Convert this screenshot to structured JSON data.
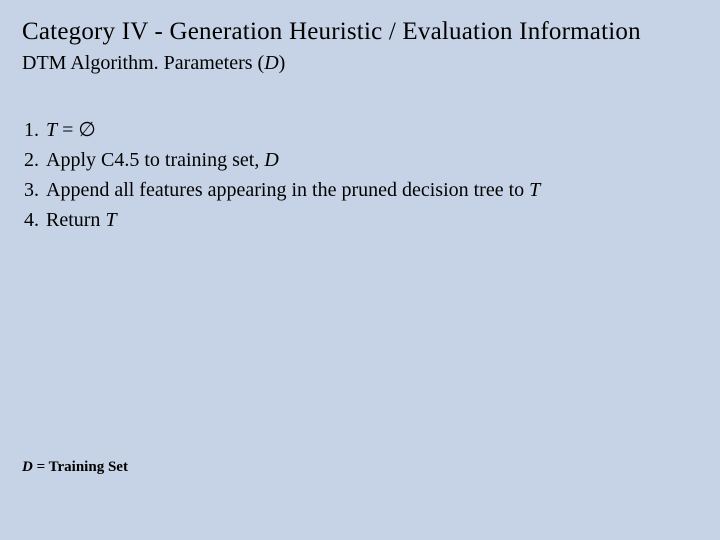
{
  "background_color": "#c6d3e6",
  "text_color": "#000000",
  "font_family": "Times New Roman",
  "title": {
    "text": "Category IV - Generation Heuristic / Evaluation Information",
    "fontsize": 25
  },
  "subtitle": {
    "prefix": "DTM Algorithm. Parameters (",
    "param": "D",
    "suffix": ")",
    "fontsize": 20
  },
  "steps": {
    "fontsize": 20,
    "items": [
      {
        "parts": [
          {
            "text": "T",
            "italic": true
          },
          {
            "text": " = ∅",
            "italic": false
          }
        ]
      },
      {
        "parts": [
          {
            "text": "Apply C4.5 to training set, ",
            "italic": false
          },
          {
            "text": "D",
            "italic": true
          }
        ]
      },
      {
        "parts": [
          {
            "text": "Append all features appearing in the pruned decision tree to ",
            "italic": false
          },
          {
            "text": "T",
            "italic": true
          }
        ]
      },
      {
        "parts": [
          {
            "text": "Return ",
            "italic": false
          },
          {
            "text": "T",
            "italic": true
          }
        ]
      }
    ]
  },
  "footer": {
    "fontsize": 15,
    "parts": [
      {
        "text": "D",
        "italic": true,
        "bold": true
      },
      {
        "text": " = Training Set",
        "italic": false,
        "bold": true
      }
    ]
  }
}
